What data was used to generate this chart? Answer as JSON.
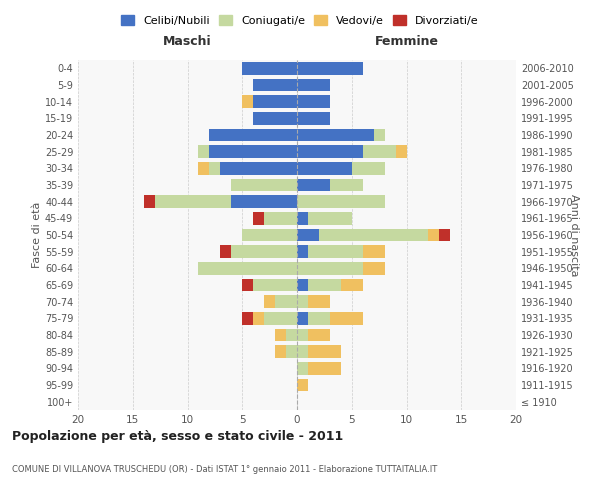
{
  "age_groups": [
    "100+",
    "95-99",
    "90-94",
    "85-89",
    "80-84",
    "75-79",
    "70-74",
    "65-69",
    "60-64",
    "55-59",
    "50-54",
    "45-49",
    "40-44",
    "35-39",
    "30-34",
    "25-29",
    "20-24",
    "15-19",
    "10-14",
    "5-9",
    "0-4"
  ],
  "birth_years": [
    "≤ 1910",
    "1911-1915",
    "1916-1920",
    "1921-1925",
    "1926-1930",
    "1931-1935",
    "1936-1940",
    "1941-1945",
    "1946-1950",
    "1951-1955",
    "1956-1960",
    "1961-1965",
    "1966-1970",
    "1971-1975",
    "1976-1980",
    "1981-1985",
    "1986-1990",
    "1991-1995",
    "1996-2000",
    "2001-2005",
    "2006-2010"
  ],
  "males": {
    "celibi": [
      0,
      0,
      0,
      0,
      0,
      0,
      0,
      0,
      0,
      0,
      0,
      0,
      6,
      0,
      7,
      8,
      8,
      4,
      4,
      4,
      5
    ],
    "coniugati": [
      0,
      0,
      0,
      1,
      1,
      3,
      2,
      4,
      9,
      6,
      5,
      3,
      7,
      6,
      1,
      1,
      0,
      0,
      0,
      0,
      0
    ],
    "vedovi": [
      0,
      0,
      0,
      1,
      1,
      1,
      1,
      0,
      0,
      0,
      0,
      0,
      0,
      0,
      1,
      0,
      0,
      0,
      1,
      0,
      0
    ],
    "divorziati": [
      0,
      0,
      0,
      0,
      0,
      1,
      0,
      1,
      0,
      1,
      0,
      1,
      1,
      0,
      0,
      0,
      0,
      0,
      0,
      0,
      0
    ]
  },
  "females": {
    "nubili": [
      0,
      0,
      0,
      0,
      0,
      1,
      0,
      1,
      0,
      1,
      2,
      1,
      0,
      3,
      5,
      6,
      7,
      3,
      3,
      3,
      6
    ],
    "coniugate": [
      0,
      0,
      1,
      1,
      1,
      2,
      1,
      3,
      6,
      5,
      10,
      4,
      8,
      3,
      3,
      3,
      1,
      0,
      0,
      0,
      0
    ],
    "vedove": [
      0,
      1,
      3,
      3,
      2,
      3,
      2,
      2,
      2,
      2,
      1,
      0,
      0,
      0,
      0,
      1,
      0,
      0,
      0,
      0,
      0
    ],
    "divorziate": [
      0,
      0,
      0,
      0,
      0,
      0,
      0,
      0,
      0,
      0,
      1,
      0,
      0,
      0,
      0,
      0,
      0,
      0,
      0,
      0,
      0
    ]
  },
  "colors": {
    "celibi_nubili": "#4472c4",
    "coniugati": "#c5d9a0",
    "vedovi": "#f0c060",
    "divorziati": "#c0302a"
  },
  "title": "Popolazione per età, sesso e stato civile - 2011",
  "subtitle": "COMUNE DI VILLANOVA TRUSCHEDU (OR) - Dati ISTAT 1° gennaio 2011 - Elaborazione TUTTAITALIA.IT",
  "xlabel_left": "Maschi",
  "xlabel_right": "Femmine",
  "ylabel_left": "Fasce di età",
  "ylabel_right": "Anni di nascita",
  "xlim": 20,
  "legend_labels": [
    "Celibi/Nubili",
    "Coniugati/e",
    "Vedovi/e",
    "Divorziati/e"
  ],
  "background_color": "#ffffff"
}
